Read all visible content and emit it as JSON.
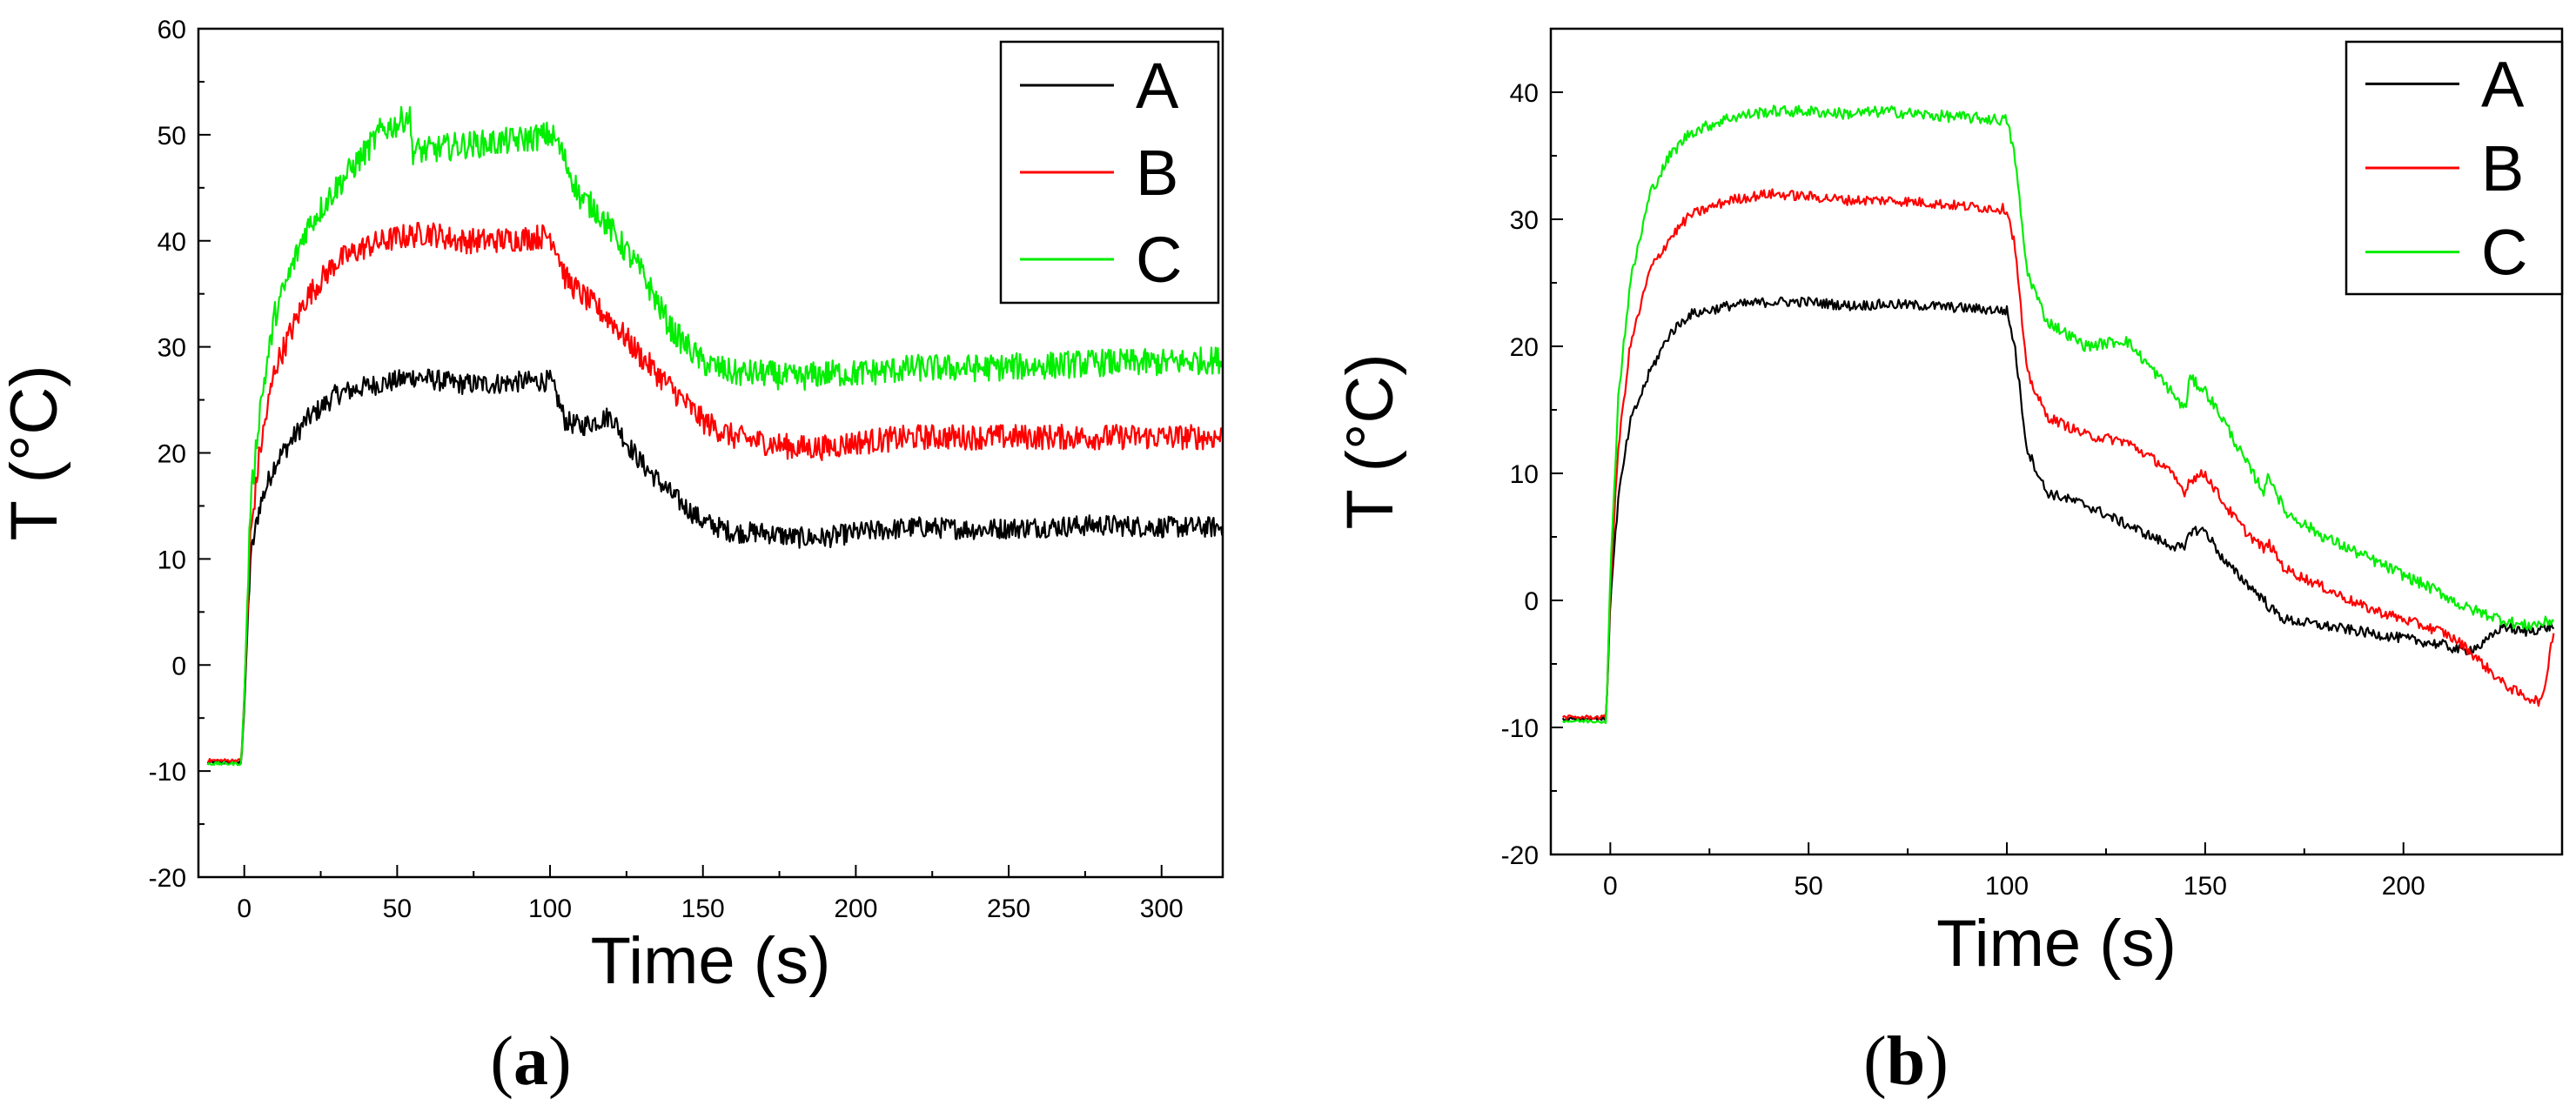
{
  "chart_data": [
    {
      "id": "a",
      "type": "line",
      "label": "a",
      "xlabel": "Time (s)",
      "ylabel": "T (°C)",
      "xlim": [
        -15,
        320
      ],
      "ylim": [
        -20,
        60
      ],
      "xticks": [
        0,
        50,
        100,
        150,
        200,
        250,
        300
      ],
      "yticks": [
        -20,
        -10,
        0,
        10,
        20,
        30,
        40,
        50,
        60
      ],
      "legend": "top-right",
      "series": [
        {
          "name": "A",
          "color": "#000000",
          "noise": 1.0,
          "x": [
            -12,
            -1,
            0,
            2,
            5,
            10,
            20,
            30,
            40,
            50,
            55,
            60,
            70,
            80,
            90,
            100,
            102,
            105,
            110,
            115,
            120,
            125,
            130,
            140,
            150,
            160,
            170,
            180,
            190,
            200,
            220,
            240,
            260,
            280,
            300,
            320
          ],
          "y": [
            -9.2,
            -9.2,
            -4,
            10,
            15,
            19,
            23,
            25.5,
            26.3,
            26.8,
            27.2,
            27,
            26.5,
            26.5,
            26.7,
            26.8,
            25.5,
            23,
            22.5,
            23,
            23.5,
            21,
            19,
            16,
            13.5,
            12.5,
            12.5,
            12,
            12,
            12.5,
            13,
            12.8,
            13,
            13.2,
            13,
            13
          ]
        },
        {
          "name": "B",
          "color": "#ff0000",
          "noise": 1.2,
          "x": [
            -12,
            -1,
            0,
            2,
            5,
            10,
            20,
            30,
            40,
            50,
            55,
            60,
            70,
            80,
            90,
            100,
            102,
            105,
            110,
            120,
            130,
            140,
            150,
            160,
            170,
            180,
            190,
            200,
            220,
            240,
            260,
            280,
            300,
            320
          ],
          "y": [
            -9,
            -9,
            -3,
            12,
            20,
            28,
            34.5,
            38,
            39.5,
            40.3,
            40.5,
            40.8,
            40,
            40,
            40.2,
            40.5,
            39.5,
            36.5,
            35,
            32.5,
            29,
            26,
            23,
            21.5,
            21,
            20.5,
            20.5,
            21,
            21.5,
            21.5,
            21.5,
            21.5,
            21.5,
            21.5
          ]
        },
        {
          "name": "C",
          "color": "#00ee00",
          "noise": 1.3,
          "x": [
            -12,
            -1,
            0,
            2,
            5,
            10,
            20,
            30,
            40,
            45,
            50,
            54,
            55,
            60,
            70,
            80,
            90,
            100,
            102,
            105,
            110,
            115,
            120,
            130,
            140,
            150,
            160,
            170,
            180,
            190,
            200,
            220,
            240,
            260,
            280,
            300,
            320
          ],
          "y": [
            -9.3,
            -9.3,
            -3,
            15,
            24,
            33,
            41,
            45,
            48.5,
            50.5,
            51,
            52,
            48.5,
            48.5,
            49,
            49.2,
            49.5,
            50,
            49.5,
            47.5,
            44,
            43,
            41,
            37,
            31.5,
            28.5,
            27.5,
            27.5,
            27,
            27.5,
            27.5,
            28,
            28,
            28.2,
            28.5,
            28.5,
            28.8
          ]
        }
      ]
    },
    {
      "id": "b",
      "type": "line",
      "label": "b",
      "xlabel": "Time (s)",
      "ylabel": "T (°C)",
      "xlim": [
        -15,
        240
      ],
      "ylim": [
        -20,
        45
      ],
      "xticks": [
        0,
        50,
        100,
        150,
        200
      ],
      "yticks": [
        -20,
        -10,
        0,
        10,
        20,
        30,
        40
      ],
      "legend": "top-right",
      "series": [
        {
          "name": "A",
          "color": "#000000",
          "noise": 0.4,
          "x": [
            -12,
            -1,
            0,
            2,
            5,
            10,
            15,
            20,
            30,
            40,
            50,
            60,
            70,
            80,
            90,
            100,
            102,
            105,
            110,
            120,
            130,
            140,
            145,
            146,
            150,
            155,
            160,
            165,
            166,
            170,
            180,
            190,
            200,
            210,
            215,
            220,
            225,
            230,
            235,
            238
          ],
          "y": [
            -9.3,
            -9.3,
            0,
            8,
            14,
            18,
            21,
            22.5,
            23.2,
            23.5,
            23.5,
            23.2,
            23.3,
            23.2,
            23,
            22.8,
            20,
            12,
            8.5,
            7.5,
            6,
            4.5,
            4,
            5.5,
            5.5,
            3,
            1.5,
            0,
            -0.5,
            -1.5,
            -2,
            -2.5,
            -3,
            -3.5,
            -4,
            -3.5,
            -2,
            -2.5,
            -2.2,
            -2
          ]
        },
        {
          "name": "B",
          "color": "#ff0000",
          "noise": 0.4,
          "x": [
            -12,
            -1,
            0,
            2,
            5,
            10,
            15,
            20,
            30,
            40,
            50,
            60,
            70,
            80,
            90,
            100,
            102,
            105,
            110,
            120,
            130,
            140,
            145,
            146,
            150,
            155,
            160,
            165,
            166,
            170,
            180,
            190,
            200,
            210,
            215,
            220,
            225,
            230,
            235,
            238
          ],
          "y": [
            -9.2,
            -9.2,
            1,
            12,
            20,
            26,
            28.5,
            30.3,
            31.5,
            32,
            31.8,
            31.5,
            31.5,
            31.3,
            31,
            30.8,
            28,
            18,
            14.5,
            13,
            12.5,
            10.5,
            8.5,
            9.5,
            10,
            7.5,
            5.5,
            4,
            4.5,
            2.5,
            1,
            -0.5,
            -1.5,
            -2.5,
            -3.5,
            -5,
            -6.5,
            -7.5,
            -8,
            -2
          ]
        },
        {
          "name": "C",
          "color": "#00ee00",
          "noise": 0.45,
          "x": [
            -12,
            -1,
            0,
            2,
            5,
            10,
            15,
            20,
            30,
            40,
            50,
            60,
            70,
            80,
            90,
            100,
            102,
            105,
            110,
            120,
            130,
            140,
            145,
            146,
            150,
            155,
            160,
            165,
            166,
            170,
            180,
            190,
            200,
            210,
            215,
            220,
            225,
            230,
            235,
            238
          ],
          "y": [
            -9.5,
            -9.5,
            2,
            16,
            25,
            32,
            35,
            36.8,
            38,
            38.5,
            38.5,
            38.3,
            38.5,
            38.2,
            38,
            37.8,
            35,
            26,
            22,
            20,
            20.5,
            17,
            15,
            17.5,
            16.5,
            14,
            11,
            8.5,
            10,
            7,
            5,
            3.5,
            2,
            0.5,
            -0.5,
            -1,
            -1.5,
            -2,
            -1.8,
            -1.5
          ]
        }
      ]
    }
  ],
  "captions": {
    "a": "a",
    "b": "b"
  }
}
